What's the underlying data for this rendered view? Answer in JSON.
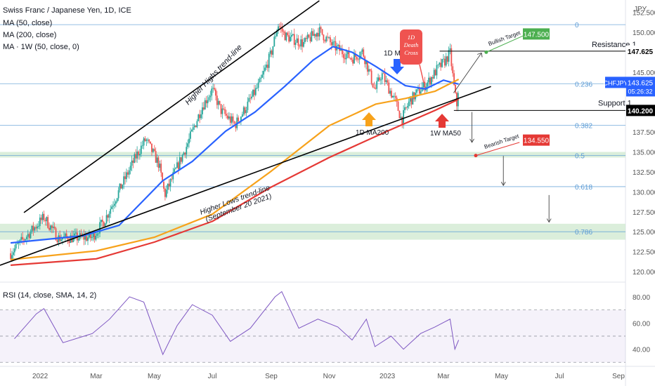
{
  "header": {
    "title": "Swiss Franc / Japanese Yen, 1D, ICE",
    "ma50": "MA (50, close)",
    "ma200": "MA (200, close)",
    "ma1w": "MA · 1W (50, close, 0)",
    "rsi": "RSI (14, close, SMA, 14, 2)",
    "currency": "JPY"
  },
  "colors": {
    "up": "#26a69a",
    "down": "#ef5350",
    "ma50": "#2962ff",
    "ma200": "#f7a21b",
    "ma1w": "#e53935",
    "fib": "#5b9bd5",
    "rsi": "#7e57c2",
    "zone": "#cfe8cf",
    "bullish_target": "#4caf50",
    "bearish_target": "#e53935"
  },
  "chart_data": {
    "type": "candlestick",
    "x_axis_labels": [
      "2022",
      "Mar",
      "May",
      "Jul",
      "Sep",
      "Nov",
      "2023",
      "Mar",
      "May",
      "Jul",
      "Sep"
    ],
    "y_axis_labels": [
      "152.500",
      "150.000",
      "147.500",
      "145.000",
      "142.500",
      "140.000",
      "137.500",
      "135.000",
      "132.500",
      "130.000",
      "127.500",
      "125.000",
      "122.500",
      "120.000"
    ],
    "ylim": [
      119.3,
      153.6
    ],
    "price_path": [
      [
        "2021-12-01",
        122.3
      ],
      [
        "2022-01-05",
        126.8
      ],
      [
        "2022-01-20",
        124.2
      ],
      [
        "2022-02-25",
        124.3
      ],
      [
        "2022-03-10",
        126.5
      ],
      [
        "2022-04-12",
        134.5
      ],
      [
        "2022-04-22",
        136.6
      ],
      [
        "2022-05-06",
        133.4
      ],
      [
        "2022-05-12",
        129.6
      ],
      [
        "2022-06-05",
        136.0
      ],
      [
        "2022-06-20",
        140.6
      ],
      [
        "2022-07-01",
        142.8
      ],
      [
        "2022-07-10",
        140.2
      ],
      [
        "2022-07-25",
        138.4
      ],
      [
        "2022-08-05",
        140.5
      ],
      [
        "2022-08-20",
        143.6
      ],
      [
        "2022-09-01",
        147.4
      ],
      [
        "2022-09-08",
        151.0
      ],
      [
        "2022-09-16",
        149.5
      ],
      [
        "2022-10-05",
        148.6
      ],
      [
        "2022-10-21",
        150.2
      ],
      [
        "2022-11-05",
        148.3
      ],
      [
        "2022-11-25",
        146.7
      ],
      [
        "2022-12-06",
        147.6
      ],
      [
        "2022-12-19",
        142.7
      ],
      [
        "2022-12-26",
        144.8
      ],
      [
        "2023-01-10",
        141.2
      ],
      [
        "2023-01-16",
        139.0
      ],
      [
        "2023-01-24",
        141.3
      ],
      [
        "2023-02-02",
        142.5
      ],
      [
        "2023-02-14",
        143.9
      ],
      [
        "2023-02-22",
        145.3
      ],
      [
        "2023-03-02",
        146.3
      ],
      [
        "2023-03-08",
        147.4
      ],
      [
        "2023-03-13",
        142.3
      ],
      [
        "2023-03-15",
        140.9
      ],
      [
        "2023-03-17",
        143.6
      ]
    ],
    "series": [
      {
        "name": "MA (50, close)",
        "color": "#2962ff",
        "points": [
          [
            "2021-12-01",
            123.6
          ],
          [
            "2022-02-15",
            124.5
          ],
          [
            "2022-03-25",
            125.8
          ],
          [
            "2022-05-10",
            131.4
          ],
          [
            "2022-06-10",
            133.8
          ],
          [
            "2022-07-15",
            137.6
          ],
          [
            "2022-08-15",
            140.0
          ],
          [
            "2022-09-15",
            143.2
          ],
          [
            "2022-10-15",
            146.5
          ],
          [
            "2022-11-05",
            148.2
          ],
          [
            "2022-11-25",
            147.5
          ],
          [
            "2022-12-20",
            145.7
          ],
          [
            "2023-01-20",
            143.3
          ],
          [
            "2023-02-10",
            142.9
          ],
          [
            "2023-03-01",
            144.0
          ],
          [
            "2023-03-10",
            143.7
          ],
          [
            "2023-03-17",
            143.5
          ]
        ]
      },
      {
        "name": "MA (200, close)",
        "color": "#f7a21b",
        "points": [
          [
            "2021-12-01",
            121.5
          ],
          [
            "2022-03-01",
            122.6
          ],
          [
            "2022-05-01",
            124.3
          ],
          [
            "2022-07-01",
            127.2
          ],
          [
            "2022-09-01",
            132.6
          ],
          [
            "2022-11-01",
            138.3
          ],
          [
            "2022-12-20",
            141.0
          ],
          [
            "2023-01-20",
            141.7
          ],
          [
            "2023-02-20",
            142.6
          ],
          [
            "2023-03-17",
            144.1
          ]
        ]
      },
      {
        "name": "MA · 1W (50, close, 0)",
        "color": "#e53935",
        "points": [
          [
            "2021-12-01",
            120.8
          ],
          [
            "2022-03-01",
            121.6
          ],
          [
            "2022-05-01",
            123.7
          ],
          [
            "2022-07-01",
            126.3
          ],
          [
            "2022-09-01",
            130.6
          ],
          [
            "2022-11-01",
            134.3
          ],
          [
            "2023-01-01",
            137.6
          ],
          [
            "2023-02-20",
            140.2
          ],
          [
            "2023-03-17",
            141.6
          ]
        ]
      }
    ],
    "last_price": {
      "label": "CHFJPY",
      "value": "143.625",
      "countdown": "05:26:32"
    },
    "horizontal_levels": [
      {
        "label": "Resistance 1",
        "value": "147.625"
      },
      {
        "label": "Support 1",
        "value": "140.200"
      }
    ],
    "fibonacci": [
      {
        "level": "0",
        "price": 150.95
      },
      {
        "level": "0.236",
        "price": 143.55
      },
      {
        "level": "0.382",
        "price": 138.35
      },
      {
        "level": "0.5",
        "price": 134.55
      },
      {
        "level": "0.618",
        "price": 130.65
      },
      {
        "level": "0.786",
        "price": 125.0
      }
    ],
    "zones": [
      {
        "from": 134.3,
        "to": 135.0
      },
      {
        "from": 124.0,
        "to": 126.0
      }
    ],
    "targets": [
      {
        "label": "Bullish Target",
        "value": "147.500"
      },
      {
        "label": "Bearish Target",
        "value": "134.550"
      }
    ],
    "annotations": [
      "Higher Highs trend-line",
      "Higher Lows trend-line (September 20 2021)",
      "1D MA50",
      "1D Death Cross",
      "1D MA200",
      "1W MA50"
    ],
    "rsi": {
      "label": "RSI (14, close, SMA, 14, 2)",
      "ylim": [
        28,
        88
      ],
      "y_axis_labels": [
        "80.00",
        "60.00",
        "40.00"
      ],
      "bands": {
        "upper": 70,
        "middle": 50,
        "lower": 30
      },
      "points": [
        [
          "2021-12-05",
          48
        ],
        [
          "2021-12-28",
          67
        ],
        [
          "2022-01-05",
          71
        ],
        [
          "2022-01-25",
          45
        ],
        [
          "2022-02-25",
          52
        ],
        [
          "2022-03-15",
          63
        ],
        [
          "2022-04-05",
          80
        ],
        [
          "2022-04-20",
          76
        ],
        [
          "2022-05-10",
          36
        ],
        [
          "2022-05-25",
          58
        ],
        [
          "2022-06-10",
          74
        ],
        [
          "2022-07-01",
          66
        ],
        [
          "2022-07-20",
          46
        ],
        [
          "2022-08-10",
          56
        ],
        [
          "2022-09-05",
          80
        ],
        [
          "2022-09-12",
          84
        ],
        [
          "2022-09-30",
          56
        ],
        [
          "2022-10-20",
          63
        ],
        [
          "2022-11-10",
          57
        ],
        [
          "2022-11-25",
          47
        ],
        [
          "2022-12-10",
          63
        ],
        [
          "2022-12-19",
          42
        ],
        [
          "2023-01-05",
          50
        ],
        [
          "2023-01-18",
          40
        ],
        [
          "2023-02-05",
          52
        ],
        [
          "2023-02-20",
          57
        ],
        [
          "2023-03-08",
          63
        ],
        [
          "2023-03-13",
          40
        ],
        [
          "2023-03-17",
          47
        ]
      ]
    }
  }
}
